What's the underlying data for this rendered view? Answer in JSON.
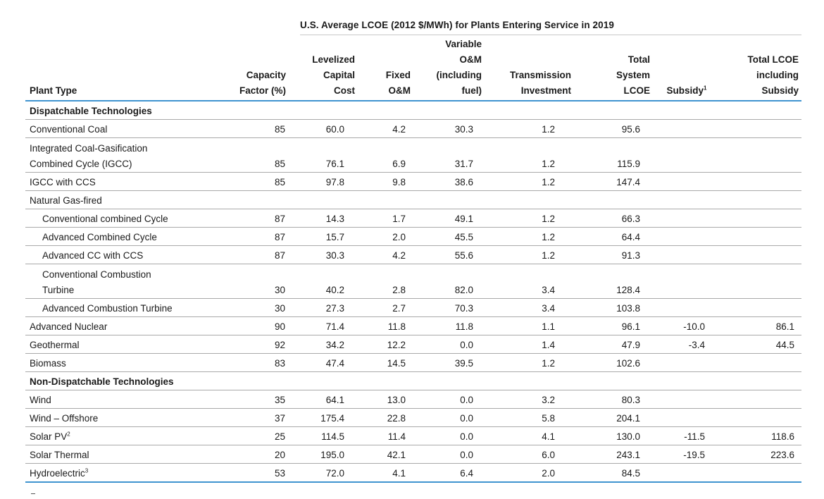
{
  "table": {
    "super_title": "U.S. Average LCOE (2012 $/MWh) for Plants Entering Service in 2019",
    "headers": [
      {
        "label": "Plant Type",
        "lines": [
          "Plant Type"
        ]
      },
      {
        "label": "Capacity Factor (%)",
        "lines": [
          "Capacity",
          "Factor (%)"
        ]
      },
      {
        "label": "Levelized Capital Cost",
        "lines": [
          "Levelized",
          "Capital",
          "Cost"
        ]
      },
      {
        "label": "Fixed O&M",
        "lines": [
          "Fixed",
          "O&M"
        ]
      },
      {
        "label": "Variable O&M (including fuel)",
        "lines": [
          "Variable",
          "O&M",
          "(including",
          "fuel)"
        ]
      },
      {
        "label": "Transmission Investment",
        "lines": [
          "Transmission",
          "Investment"
        ]
      },
      {
        "label": "Total System LCOE",
        "lines": [
          "Total",
          "System",
          "LCOE"
        ]
      },
      {
        "label": "Subsidy",
        "lines": [
          "Subsidy"
        ],
        "sup": "1"
      },
      {
        "label": "Total LCOE including Subsidy",
        "lines": [
          "Total LCOE",
          "including",
          "Subsidy"
        ]
      }
    ],
    "rows": [
      {
        "kind": "section",
        "name": "Dispatchable Technologies"
      },
      {
        "kind": "data",
        "name": "Conventional Coal",
        "values": [
          "85",
          "60.0",
          "4.2",
          "30.3",
          "1.2",
          "95.6",
          "",
          ""
        ]
      },
      {
        "kind": "data",
        "name_lines": [
          "Integrated Coal-Gasification",
          "Combined Cycle (IGCC)"
        ],
        "values": [
          "85",
          "76.1",
          "6.9",
          "31.7",
          "1.2",
          "115.9",
          "",
          ""
        ]
      },
      {
        "kind": "data",
        "name": "IGCC with CCS",
        "values": [
          "85",
          "97.8",
          "9.8",
          "38.6",
          "1.2",
          "147.4",
          "",
          ""
        ]
      },
      {
        "kind": "group",
        "name": "Natural Gas-fired"
      },
      {
        "kind": "data",
        "indent": true,
        "name": "Conventional combined Cycle",
        "values": [
          "87",
          "14.3",
          "1.7",
          "49.1",
          "1.2",
          "66.3",
          "",
          ""
        ]
      },
      {
        "kind": "data",
        "indent": true,
        "name": "Advanced Combined Cycle",
        "values": [
          "87",
          "15.7",
          "2.0",
          "45.5",
          "1.2",
          "64.4",
          "",
          ""
        ]
      },
      {
        "kind": "data",
        "indent": true,
        "name": "Advanced CC with CCS",
        "values": [
          "87",
          "30.3",
          "4.2",
          "55.6",
          "1.2",
          "91.3",
          "",
          ""
        ]
      },
      {
        "kind": "data",
        "indent": true,
        "name_lines": [
          "Conventional Combustion",
          "Turbine"
        ],
        "values": [
          "30",
          "40.2",
          "2.8",
          "82.0",
          "3.4",
          "128.4",
          "",
          ""
        ]
      },
      {
        "kind": "data",
        "indent": true,
        "name": "Advanced Combustion Turbine",
        "values": [
          "30",
          "27.3",
          "2.7",
          "70.3",
          "3.4",
          "103.8",
          "",
          ""
        ]
      },
      {
        "kind": "data",
        "name": "Advanced Nuclear",
        "values": [
          "90",
          "71.4",
          "11.8",
          "11.8",
          "1.1",
          "96.1",
          "-10.0",
          "86.1"
        ]
      },
      {
        "kind": "data",
        "name": "Geothermal",
        "values": [
          "92",
          "34.2",
          "12.2",
          "0.0",
          "1.4",
          "47.9",
          "-3.4",
          "44.5"
        ]
      },
      {
        "kind": "data",
        "name": "Biomass",
        "values": [
          "83",
          "47.4",
          "14.5",
          "39.5",
          "1.2",
          "102.6",
          "",
          ""
        ]
      },
      {
        "kind": "section",
        "name": "Non-Dispatchable Technologies"
      },
      {
        "kind": "data",
        "name": "Wind",
        "values": [
          "35",
          "64.1",
          "13.0",
          "0.0",
          "3.2",
          "80.3",
          "",
          ""
        ]
      },
      {
        "kind": "data",
        "name": "Wind – Offshore",
        "values": [
          "37",
          "175.4",
          "22.8",
          "0.0",
          "5.8",
          "204.1",
          "",
          ""
        ]
      },
      {
        "kind": "data",
        "name": "Solar PV",
        "sup": "2",
        "values": [
          "25",
          "114.5",
          "11.4",
          "0.0",
          "4.1",
          "130.0",
          "-11.5",
          "118.6"
        ]
      },
      {
        "kind": "data",
        "name": "Solar Thermal",
        "values": [
          "20",
          "195.0",
          "42.1",
          "0.0",
          "6.0",
          "243.1",
          "-19.5",
          "223.6"
        ]
      },
      {
        "kind": "data",
        "name": "Hydroelectric",
        "sup": "3",
        "values": [
          "53",
          "72.0",
          "4.1",
          "6.4",
          "2.0",
          "84.5",
          "",
          ""
        ]
      }
    ]
  }
}
